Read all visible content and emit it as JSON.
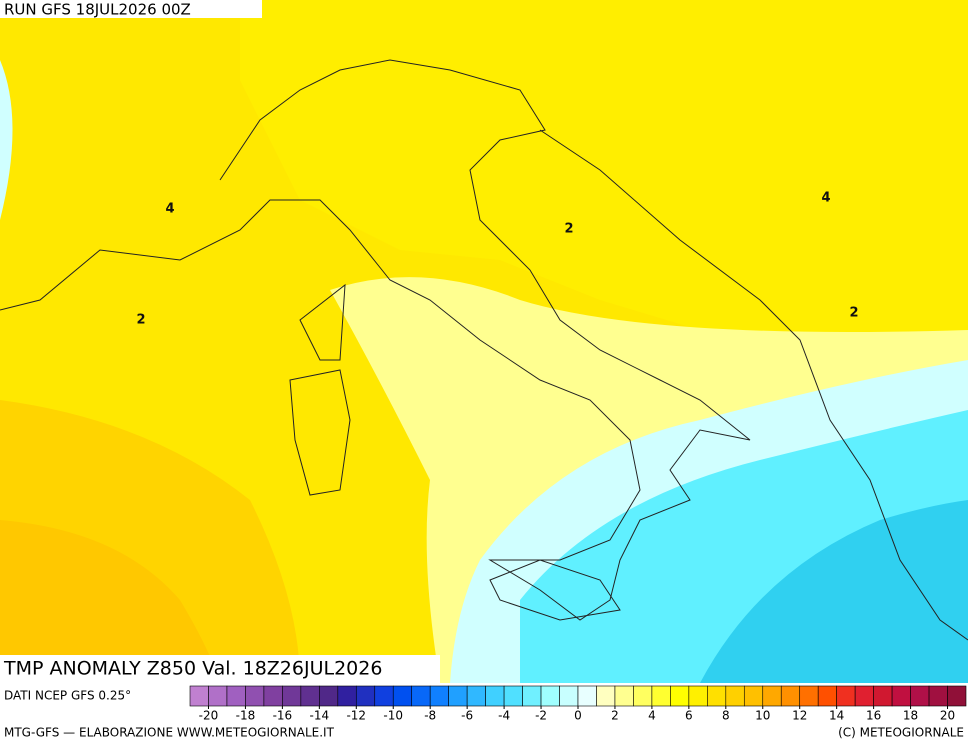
{
  "header": {
    "run": "RUN GFS 18JUL2026 00Z"
  },
  "map": {
    "title": "TMP ANOMALY Z850 Val. 18Z26JUL2026",
    "contour_labels": [
      "4",
      "2",
      "2",
      "4",
      "2"
    ]
  },
  "legend": {
    "source": "DATI NCEP GFS 0.25°",
    "lim": [
      -21,
      21
    ],
    "ticks": [
      -20,
      -18,
      -16,
      -14,
      -12,
      -10,
      -8,
      -6,
      -4,
      -2,
      0,
      2,
      4,
      6,
      8,
      10,
      12,
      14,
      16,
      18,
      20
    ],
    "colors": [
      "#c080d0",
      "#b070c8",
      "#a060c0",
      "#9050b0",
      "#8040a0",
      "#703898",
      "#603090",
      "#502888",
      "#3020a0",
      "#2030c0",
      "#1040e0",
      "#0050f0",
      "#0868f8",
      "#1080ff",
      "#20a0ff",
      "#30b8ff",
      "#40d0ff",
      "#50e0ff",
      "#70f0ff",
      "#a0ffff",
      "#c8ffff",
      "#e8ffff",
      "#ffffc0",
      "#ffff90",
      "#ffff60",
      "#ffff30",
      "#ffff00",
      "#fff000",
      "#ffe000",
      "#ffd000",
      "#ffc000",
      "#ffa800",
      "#ff9000",
      "#ff7000",
      "#ff5000",
      "#f03020",
      "#e02030",
      "#d01830",
      "#c01040",
      "#b01048",
      "#a01040",
      "#901038"
    ]
  },
  "footer": {
    "left": "MTG-GFS — ELABORAZIONE WWW.METEOGIORNALE.IT",
    "right": "(C) METEOGIORNALE"
  }
}
